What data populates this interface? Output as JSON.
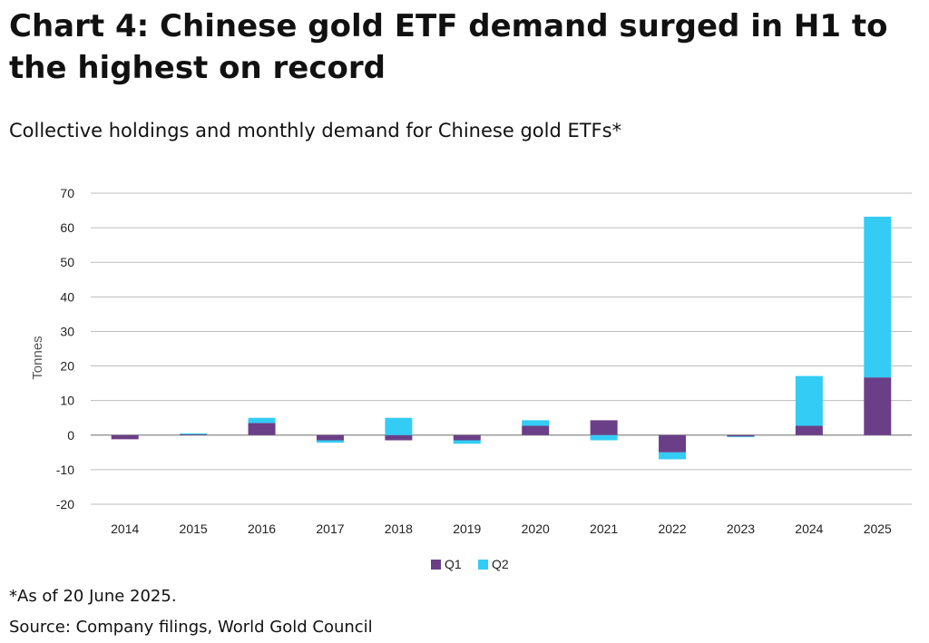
{
  "title": "Chart 4: Chinese gold ETF demand surged in H1 to the highest on record",
  "subtitle": "Collective holdings and monthly demand for Chinese gold ETFs*",
  "footnote": "*As of 20 June 2025.",
  "source": "Source: Company filings, World Gold Council",
  "chart_data": {
    "type": "bar",
    "stacked": true,
    "categories": [
      "2014",
      "2015",
      "2016",
      "2017",
      "2018",
      "2019",
      "2020",
      "2021",
      "2022",
      "2023",
      "2024",
      "2025"
    ],
    "series": [
      {
        "name": "Q1",
        "color": "#6b3f87",
        "values": [
          -1.2,
          0.2,
          3.5,
          -1.5,
          -1.5,
          -1.5,
          2.7,
          4.3,
          -5.0,
          -0.4,
          2.7,
          16.7
        ]
      },
      {
        "name": "Q2",
        "color": "#33ccf5",
        "values": [
          0.0,
          0.3,
          1.5,
          -0.7,
          5.0,
          -1.0,
          1.6,
          -1.5,
          -2.0,
          -0.2,
          14.4,
          46.5
        ]
      }
    ],
    "ylabel": "Tonnes",
    "xlabel": "",
    "ylim": [
      -20,
      70
    ],
    "yticks": [
      "-20",
      "-10",
      "0",
      "10",
      "20",
      "30",
      "40",
      "50",
      "60",
      "70"
    ],
    "grid": true,
    "legend_position": "bottom-center"
  }
}
